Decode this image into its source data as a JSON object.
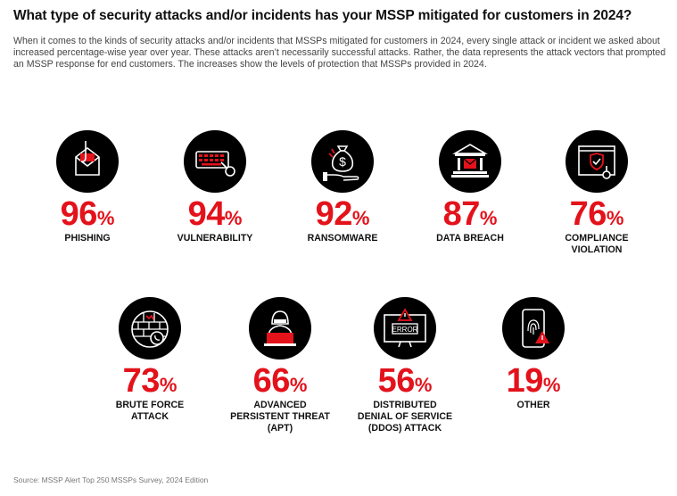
{
  "title": "What type of security attacks and/or incidents has your MSSP mitigated for customers in 2024?",
  "description": "When it comes to the kinds of security attacks and/or incidents that MSSPs mitigated for customers in 2024, every single attack or incident we asked about increased percentage-wise year over year. These attacks aren’t necessarily successful attacks. Rather, the data represents the attack vectors that prompted an MSSP response for end customers. The increases show the levels of protection that MSSPs provided in 2024.",
  "accent_color": "#e3121b",
  "stats": [
    {
      "value": "96",
      "unit": "%",
      "label": "PHISHING",
      "icon": "phishing-email-icon"
    },
    {
      "value": "94",
      "unit": "%",
      "label": "VULNERABILITY",
      "icon": "keyboard-key-icon"
    },
    {
      "value": "92",
      "unit": "%",
      "label": "RANSOMWARE",
      "icon": "money-bag-hand-icon"
    },
    {
      "value": "87",
      "unit": "%",
      "label": "DATA BREACH",
      "icon": "bank-building-icon"
    },
    {
      "value": "76",
      "unit": "%",
      "label": "COMPLIANCE\nVIOLATION",
      "icon": "shield-window-icon"
    },
    {
      "value": "73",
      "unit": "%",
      "label": "BRUTE FORCE\nATTACK",
      "icon": "brick-wall-bomb-icon"
    },
    {
      "value": "66",
      "unit": "%",
      "label": "ADVANCED\nPERSISTENT THREAT\n(APT)",
      "icon": "hacker-laptop-icon"
    },
    {
      "value": "56",
      "unit": "%",
      "label": "DISTRIBUTED\nDENIAL OF SERVICE\n(DDOS) ATTACK",
      "icon": "error-screen-icon"
    },
    {
      "value": "19",
      "unit": "%",
      "label": "OTHER",
      "icon": "fingerprint-phone-icon"
    }
  ],
  "error_text": "ERROR",
  "source": "Source: MSSP Alert Top 250 MSSPs Survey, 2024 Edition"
}
